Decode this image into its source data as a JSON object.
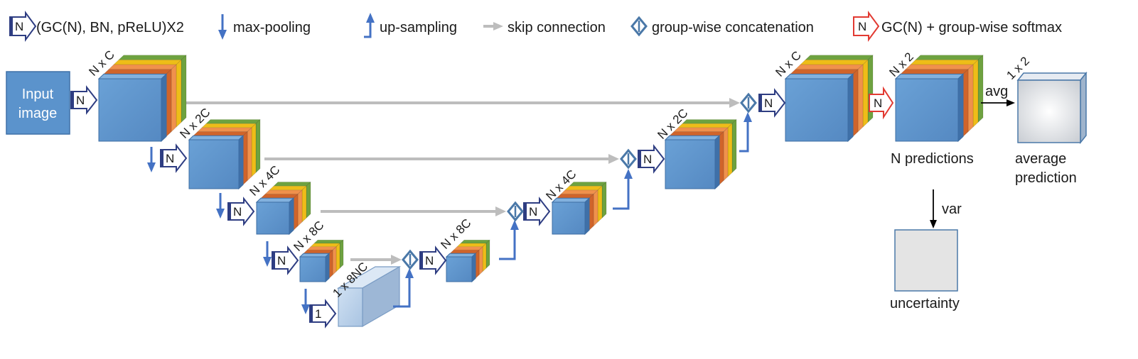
{
  "legend": {
    "block_glyph": "N",
    "block": "(GC(N), BN, pReLU)X2",
    "pool": "max-pooling",
    "up": "up-sampling",
    "skip": "skip connection",
    "concat": "group-wise concatenation",
    "final_glyph": "N",
    "final": "GC(N) + group-wise softmax"
  },
  "input": {
    "line1": "Input",
    "line2": "image"
  },
  "labels": {
    "enc1": "N x C",
    "enc2": "N x 2C",
    "enc3": "N x 4C",
    "enc4": "N x 8C",
    "bottleneck": "1 x 8NC",
    "dec4": "N x 8C",
    "dec3": "N x 4C",
    "dec2": "N x 2C",
    "dec1": "N x C",
    "pred": "N x 2",
    "avg_dim": "1 x 2",
    "block_n": "N",
    "block_1": "1",
    "avg": "avg",
    "var": "var",
    "n_predictions": "N predictions",
    "avg_pred_1": "average",
    "avg_pred_2": "prediction",
    "uncertainty": "uncertainty"
  },
  "colors": {
    "cube_front": "#5b93cc",
    "cube_top": "#82b1de",
    "cube_side": "#3f70a8",
    "edge": "#3d6da3",
    "layer_red": "#d0642a",
    "layer_orange": "#f0914c",
    "layer_yellow": "#eebd18",
    "layer_green": "#6ea240",
    "skip_gray": "#bdbdbd",
    "arrow_blue": "#4472c4",
    "block_navy": "#2e3d82",
    "final_red": "#e23a32",
    "bottleneck_light": "#b9d0ea"
  },
  "icons": [
    "block-arrow-icon",
    "down-arrow-icon",
    "up-arrow-icon",
    "gray-arrow-icon",
    "diamond-icon",
    "red-block-arrow-icon"
  ]
}
